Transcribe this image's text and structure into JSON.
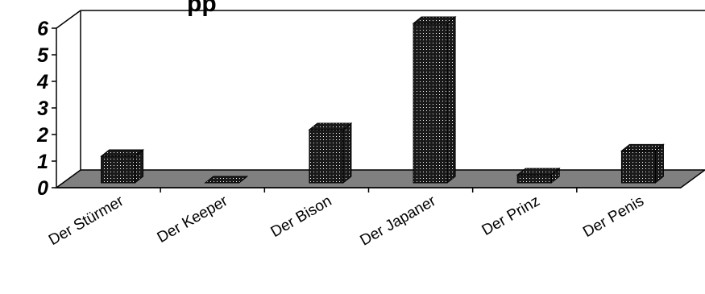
{
  "chart_data": {
    "type": "bar",
    "style": "3d-column",
    "title": "",
    "title_visible_fragment": "pp",
    "xlabel": "",
    "ylabel": "",
    "categories": [
      "Der Stürmer",
      "Der Keeper",
      "Der Bison",
      "Der Japaner",
      "Der Prinz",
      "Der Penis"
    ],
    "values": [
      1,
      0,
      2,
      6,
      0.3,
      1.2
    ],
    "ylim": [
      0,
      6
    ],
    "yticks": [
      "0",
      "1",
      "2",
      "3",
      "4",
      "5",
      "6"
    ],
    "grid": false,
    "legend": "none",
    "colors": {
      "bar": "#1a1a1a",
      "floor": "#808080",
      "axis": "#000000",
      "background": "#ffffff"
    }
  }
}
